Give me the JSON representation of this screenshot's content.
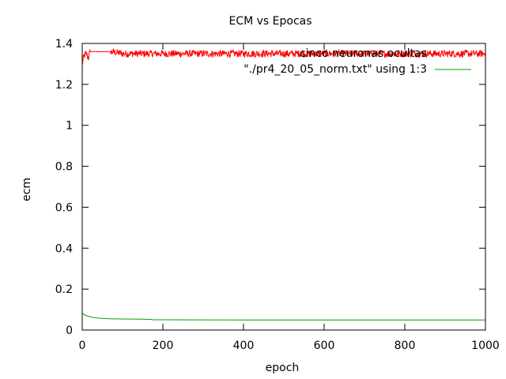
{
  "chart_data": {
    "type": "line",
    "title": "ECM vs Epocas",
    "xlabel": "epoch",
    "ylabel": "ecm",
    "xlim": [
      0,
      1000
    ],
    "ylim": [
      0,
      1.4
    ],
    "xticks": [
      "0",
      "200",
      "400",
      "600",
      "800",
      "1000"
    ],
    "yticks": [
      "0",
      "0.2",
      "0.4",
      "0.6",
      "0.8",
      "1",
      "1.2",
      "1.4"
    ],
    "grid": false,
    "legend_position": "top-right",
    "series": [
      {
        "name": "cinco neuronas ocultas",
        "color": "#ff0000",
        "style": "noisy-plateau",
        "x": [
          0,
          2,
          5,
          10,
          15,
          20,
          25,
          30,
          50,
          70,
          100,
          200,
          300,
          400,
          500,
          600,
          700,
          800,
          900,
          1000
        ],
        "y": [
          1.29,
          1.32,
          1.34,
          1.35,
          1.33,
          1.36,
          1.36,
          1.36,
          1.36,
          1.36,
          1.35,
          1.35,
          1.35,
          1.35,
          1.35,
          1.35,
          1.35,
          1.35,
          1.35,
          1.35
        ]
      },
      {
        "name": "\"./pr4_20_05_norm.txt\" using 1:3",
        "color": "#00a000",
        "style": "line",
        "x": [
          0,
          5,
          10,
          20,
          30,
          50,
          70,
          100,
          150,
          170,
          175,
          200,
          400,
          600,
          800,
          1000
        ],
        "y": [
          0.085,
          0.075,
          0.07,
          0.065,
          0.06,
          0.057,
          0.055,
          0.054,
          0.053,
          0.052,
          0.05,
          0.05,
          0.049,
          0.049,
          0.049,
          0.049
        ]
      }
    ]
  }
}
